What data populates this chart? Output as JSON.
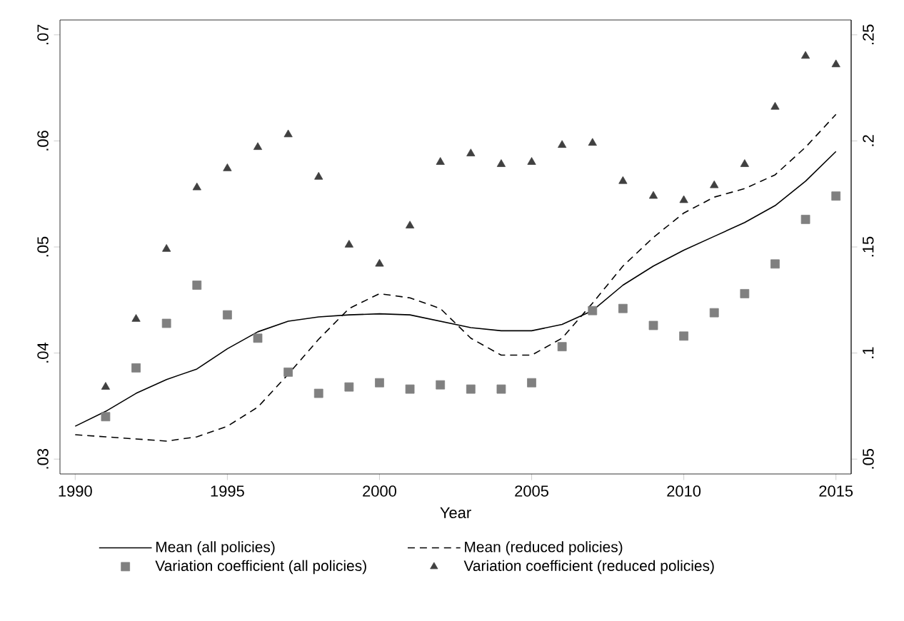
{
  "chart_data": {
    "type": "line",
    "xlabel": "Year",
    "legend": "bottom",
    "x": [
      1990,
      1991,
      1992,
      1993,
      1994,
      1995,
      1996,
      1997,
      1998,
      1999,
      2000,
      2001,
      2002,
      2003,
      2004,
      2005,
      2006,
      2007,
      2008,
      2009,
      2010,
      2011,
      2012,
      2013,
      2014,
      2015
    ],
    "xlim": [
      1989.5,
      2015.5
    ],
    "xticks": [
      1990,
      1995,
      2000,
      2005,
      2010,
      2015
    ],
    "ylim": [
      0.0286,
      0.0714
    ],
    "yticks": [
      {
        "value": 0.03,
        "label": ".03"
      },
      {
        "value": 0.04,
        "label": ".04"
      },
      {
        "value": 0.05,
        "label": ".05"
      },
      {
        "value": 0.06,
        "label": ".06"
      },
      {
        "value": 0.07,
        "label": ".07"
      }
    ],
    "y2lim": [
      0.043,
      0.257
    ],
    "y2ticks": [
      {
        "value": 0.05,
        "label": ".05"
      },
      {
        "value": 0.1,
        "label": ".1"
      },
      {
        "value": 0.15,
        "label": ".15"
      },
      {
        "value": 0.2,
        "label": ".2"
      },
      {
        "value": 0.25,
        "label": ".25"
      }
    ],
    "series": [
      {
        "name": "Mean (all policies)",
        "line_style": "solid",
        "color": "#000000",
        "values": [
          0.0331,
          0.0345,
          0.0362,
          0.0375,
          0.0385,
          0.0404,
          0.042,
          0.043,
          0.0434,
          0.0436,
          0.0437,
          0.0436,
          0.043,
          0.0424,
          0.0421,
          0.0421,
          0.0427,
          0.044,
          0.0464,
          0.0482,
          0.0497,
          0.051,
          0.0523,
          0.0539,
          0.0562,
          0.059
        ]
      },
      {
        "name": "Mean (reduced policies)",
        "line_style": "dashed",
        "color": "#000000",
        "values": [
          0.0323,
          0.0321,
          0.0319,
          0.0317,
          0.0321,
          0.0331,
          0.0349,
          0.038,
          0.0413,
          0.0442,
          0.0456,
          0.0452,
          0.0442,
          0.0414,
          0.0398,
          0.0398,
          0.0414,
          0.0447,
          0.0482,
          0.0509,
          0.0532,
          0.0547,
          0.0555,
          0.0568,
          0.0594,
          0.0625
        ]
      },
      {
        "name": "Variation coefficient (all policies)",
        "type": "scatter",
        "marker": "square",
        "axis": "y2",
        "color": "#808080",
        "values": [
          null,
          0.07,
          0.093,
          0.114,
          0.132,
          0.118,
          0.107,
          0.091,
          0.081,
          0.084,
          0.086,
          0.083,
          0.085,
          0.083,
          0.083,
          0.086,
          0.103,
          0.12,
          0.121,
          0.113,
          0.108,
          0.119,
          0.128,
          0.142,
          0.163,
          0.174
        ]
      },
      {
        "name": "Variation coefficient (reduced policies)",
        "type": "scatter",
        "marker": "triangle",
        "axis": "y2",
        "color": "#404040",
        "values": [
          null,
          0.084,
          0.116,
          0.149,
          0.178,
          0.187,
          0.197,
          0.203,
          0.183,
          0.151,
          0.142,
          0.16,
          0.19,
          0.194,
          0.189,
          0.19,
          0.198,
          0.199,
          0.181,
          0.174,
          0.172,
          0.179,
          0.189,
          0.216,
          0.24,
          0.236
        ]
      }
    ]
  }
}
